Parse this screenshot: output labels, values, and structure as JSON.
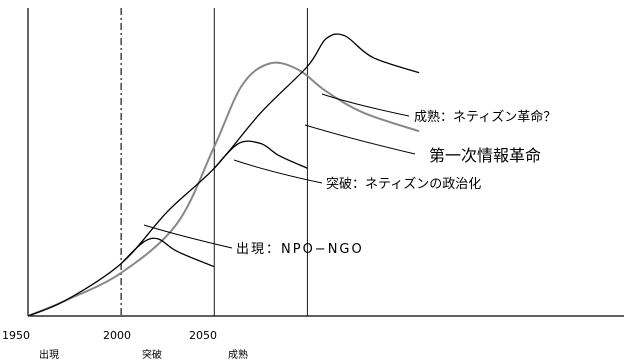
{
  "chart_data": {
    "type": "line",
    "title": "",
    "xlabel": "",
    "ylabel": "",
    "x_ticks": [
      "1950",
      "2000",
      "2050"
    ],
    "stage_labels": [
      "出現",
      "突破",
      "成熟"
    ],
    "series": [
      {
        "name": "第一次情報革命",
        "color": "#888888",
        "points": [
          [
            1950,
            0
          ],
          [
            1970,
            5
          ],
          [
            2000,
            14
          ],
          [
            2030,
            30
          ],
          [
            2050,
            55
          ],
          [
            2065,
            75
          ],
          [
            2080,
            82
          ],
          [
            2095,
            80
          ],
          [
            2110,
            73
          ],
          [
            2130,
            66
          ],
          [
            2160,
            60
          ]
        ]
      },
      {
        "name": "",
        "color": "#000000",
        "points": [
          [
            1950,
            0
          ],
          [
            1970,
            5
          ],
          [
            2000,
            17
          ],
          [
            2025,
            34
          ],
          [
            2050,
            48
          ],
          [
            2075,
            66
          ],
          [
            2100,
            81
          ],
          [
            2110,
            90
          ],
          [
            2120,
            91
          ],
          [
            2135,
            84
          ],
          [
            2160,
            79
          ]
        ]
      },
      {
        "name": "",
        "color": "#000000",
        "points": [
          [
            2000,
            17
          ],
          [
            2012,
            24
          ],
          [
            2020,
            25
          ],
          [
            2030,
            21
          ],
          [
            2050,
            16
          ]
        ]
      },
      {
        "name": "",
        "color": "#000000",
        "points": [
          [
            2050,
            48
          ],
          [
            2063,
            56
          ],
          [
            2075,
            56
          ],
          [
            2085,
            52
          ],
          [
            2100,
            48
          ]
        ]
      }
    ],
    "vlines": [
      {
        "x": 2000,
        "style": "dashdot"
      },
      {
        "x": 2050,
        "style": "solid"
      },
      {
        "x": 2100,
        "style": "solid"
      }
    ],
    "annotations": [
      {
        "text": "成熟：ネティズン革命？",
        "big": false
      },
      {
        "text": "第一次情報革命",
        "big": true
      },
      {
        "text": "突破：ネティズンの政治化",
        "big": false
      },
      {
        "text": "出現：NPO−NGO",
        "big": false
      }
    ],
    "xlim": [
      1950,
      2270
    ],
    "ylim": [
      0,
      100
    ]
  }
}
